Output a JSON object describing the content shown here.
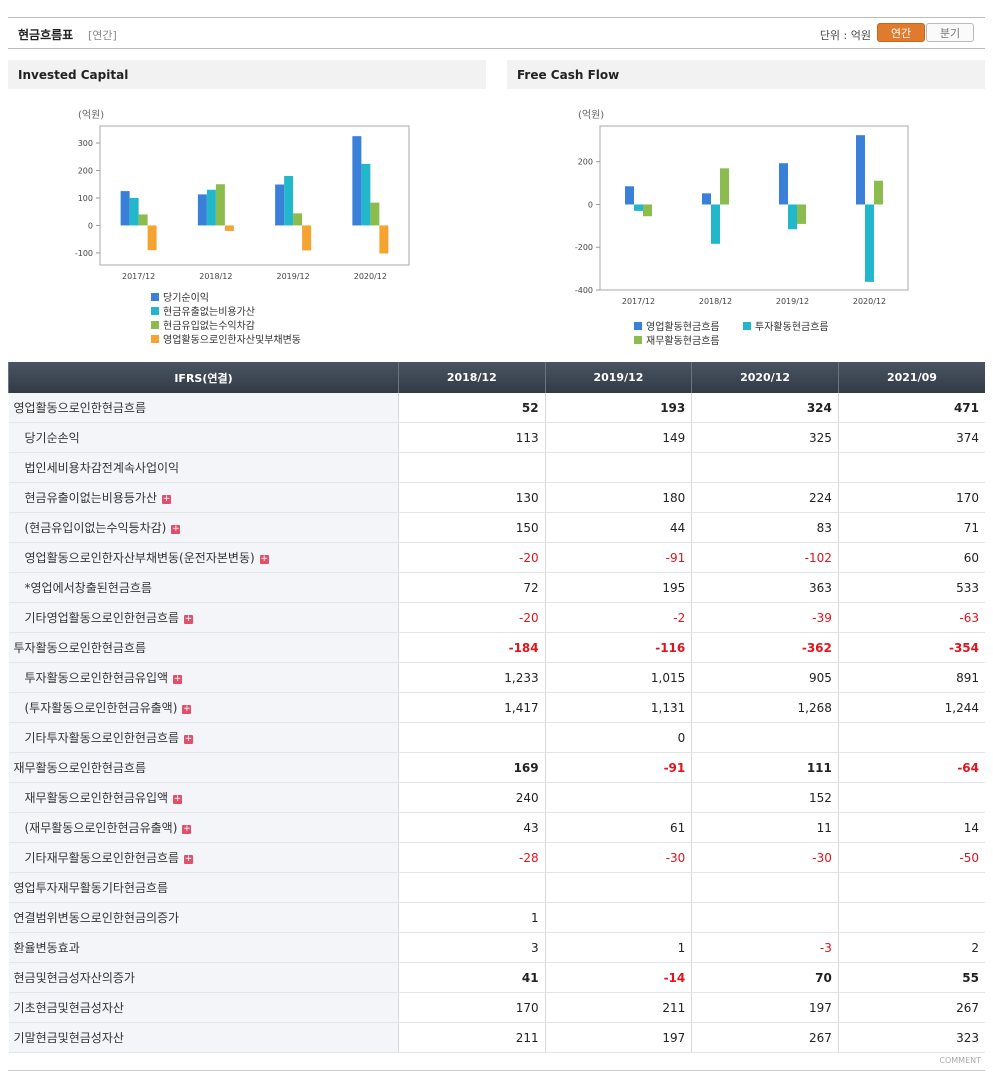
{
  "header": {
    "title": "현금흐름표",
    "period": "[연간]",
    "unit": "단위 : 억원",
    "tabs": [
      "연간",
      "분기"
    ]
  },
  "chart_data": [
    {
      "type": "bar",
      "title": "Invested Capital",
      "y_label": "(억원)",
      "categories": [
        "2017/12",
        "2018/12",
        "2019/12",
        "2020/12"
      ],
      "series": [
        {
          "name": "당기순이익",
          "color": "#3a7fd8",
          "values": [
            125,
            113,
            149,
            325
          ]
        },
        {
          "name": "현금유출없는비용가산",
          "color": "#23b7cc",
          "values": [
            100,
            130,
            180,
            224
          ]
        },
        {
          "name": "현금유입없는수익차감",
          "color": "#8cbb4e",
          "values": [
            40,
            150,
            44,
            83
          ]
        },
        {
          "name": "영업활동으로인한자산및부채변동",
          "color": "#f5a331",
          "values": [
            -90,
            -20,
            -91,
            -102
          ]
        }
      ],
      "ylim": [
        -144,
        362
      ],
      "yticks": [
        -100,
        0,
        100,
        200,
        300
      ]
    },
    {
      "type": "bar",
      "title": "Free Cash Flow",
      "y_label": "(억원)",
      "categories": [
        "2017/12",
        "2018/12",
        "2019/12",
        "2020/12"
      ],
      "series": [
        {
          "name": "영업활동현금흐름",
          "color": "#3a7fd8",
          "values": [
            85,
            52,
            193,
            324
          ]
        },
        {
          "name": "투자활동현금흐름",
          "color": "#23b7cc",
          "values": [
            -30,
            -184,
            -116,
            -362
          ]
        },
        {
          "name": "재무활동현금흐름",
          "color": "#8cbb4e",
          "values": [
            -55,
            169,
            -91,
            111
          ]
        }
      ],
      "ylim": [
        -400,
        367
      ],
      "yticks": [
        -400,
        -200,
        0,
        200
      ]
    }
  ],
  "table": {
    "header": "IFRS(연결)",
    "columns": [
      "2018/12",
      "2019/12",
      "2020/12",
      "2021/09"
    ],
    "rows": [
      {
        "label": "영업활동으로인한현금흐름",
        "bold": true,
        "values": [
          "52",
          "193",
          "324",
          "471"
        ]
      },
      {
        "label": "당기순손익",
        "level": 1,
        "values": [
          "113",
          "149",
          "325",
          "374"
        ]
      },
      {
        "label": "법인세비용차감전계속사업이익",
        "level": 1,
        "values": [
          null,
          null,
          null,
          null
        ]
      },
      {
        "label": "현금유출이없는비용등가산",
        "level": 1,
        "expandable": true,
        "values": [
          "130",
          "180",
          "224",
          "170"
        ]
      },
      {
        "label": "(현금유입이없는수익등차감)",
        "level": 1,
        "expandable": true,
        "values": [
          "150",
          "44",
          "83",
          "71"
        ]
      },
      {
        "label": "영업활동으로인한자산부채변동(운전자본변동)",
        "level": 1,
        "expandable": true,
        "values": [
          "-20",
          "-91",
          "-102",
          "60"
        ]
      },
      {
        "label": "*영업에서창출된현금흐름",
        "level": 1,
        "values": [
          "72",
          "195",
          "363",
          "533"
        ]
      },
      {
        "label": "기타영업활동으로인한현금흐름",
        "level": 1,
        "expandable": true,
        "values": [
          "-20",
          "-2",
          "-39",
          "-63"
        ]
      },
      {
        "label": "투자활동으로인한현금흐름",
        "bold": true,
        "values": [
          "-184",
          "-116",
          "-362",
          "-354"
        ]
      },
      {
        "label": "투자활동으로인한현금유입액",
        "level": 1,
        "expandable": true,
        "values": [
          "1,233",
          "1,015",
          "905",
          "891"
        ]
      },
      {
        "label": "(투자활동으로인한현금유출액)",
        "level": 1,
        "expandable": true,
        "values": [
          "1,417",
          "1,131",
          "1,268",
          "1,244"
        ]
      },
      {
        "label": "기타투자활동으로인한현금흐름",
        "level": 1,
        "expandable": true,
        "values": [
          null,
          "0",
          null,
          null
        ]
      },
      {
        "label": "재무활동으로인한현금흐름",
        "bold": true,
        "values": [
          "169",
          "-91",
          "111",
          "-64"
        ]
      },
      {
        "label": "재무활동으로인한현금유입액",
        "level": 1,
        "expandable": true,
        "values": [
          "240",
          null,
          "152",
          null
        ]
      },
      {
        "label": "(재무활동으로인한현금유출액)",
        "level": 1,
        "expandable": true,
        "values": [
          "43",
          "61",
          "11",
          "14"
        ]
      },
      {
        "label": "기타재무활동으로인한현금흐름",
        "level": 1,
        "expandable": true,
        "values": [
          "-28",
          "-30",
          "-30",
          "-50"
        ]
      },
      {
        "label": "영업투자재무활동기타현금흐름",
        "values": [
          null,
          null,
          null,
          null
        ]
      },
      {
        "label": "연결범위변동으로인한현금의증가",
        "values": [
          "1",
          null,
          null,
          null
        ]
      },
      {
        "label": "환율변동효과",
        "values": [
          "3",
          "1",
          "-3",
          "2"
        ]
      },
      {
        "label": "현금및현금성자산의증가",
        "bold": true,
        "values": [
          "41",
          "-14",
          "70",
          "55"
        ]
      },
      {
        "label": "기초현금및현금성자산",
        "values": [
          "170",
          "211",
          "197",
          "267"
        ]
      },
      {
        "label": "기말현금및현금성자산",
        "values": [
          "211",
          "197",
          "267",
          "323"
        ]
      }
    ]
  },
  "footer": "COMMENT"
}
